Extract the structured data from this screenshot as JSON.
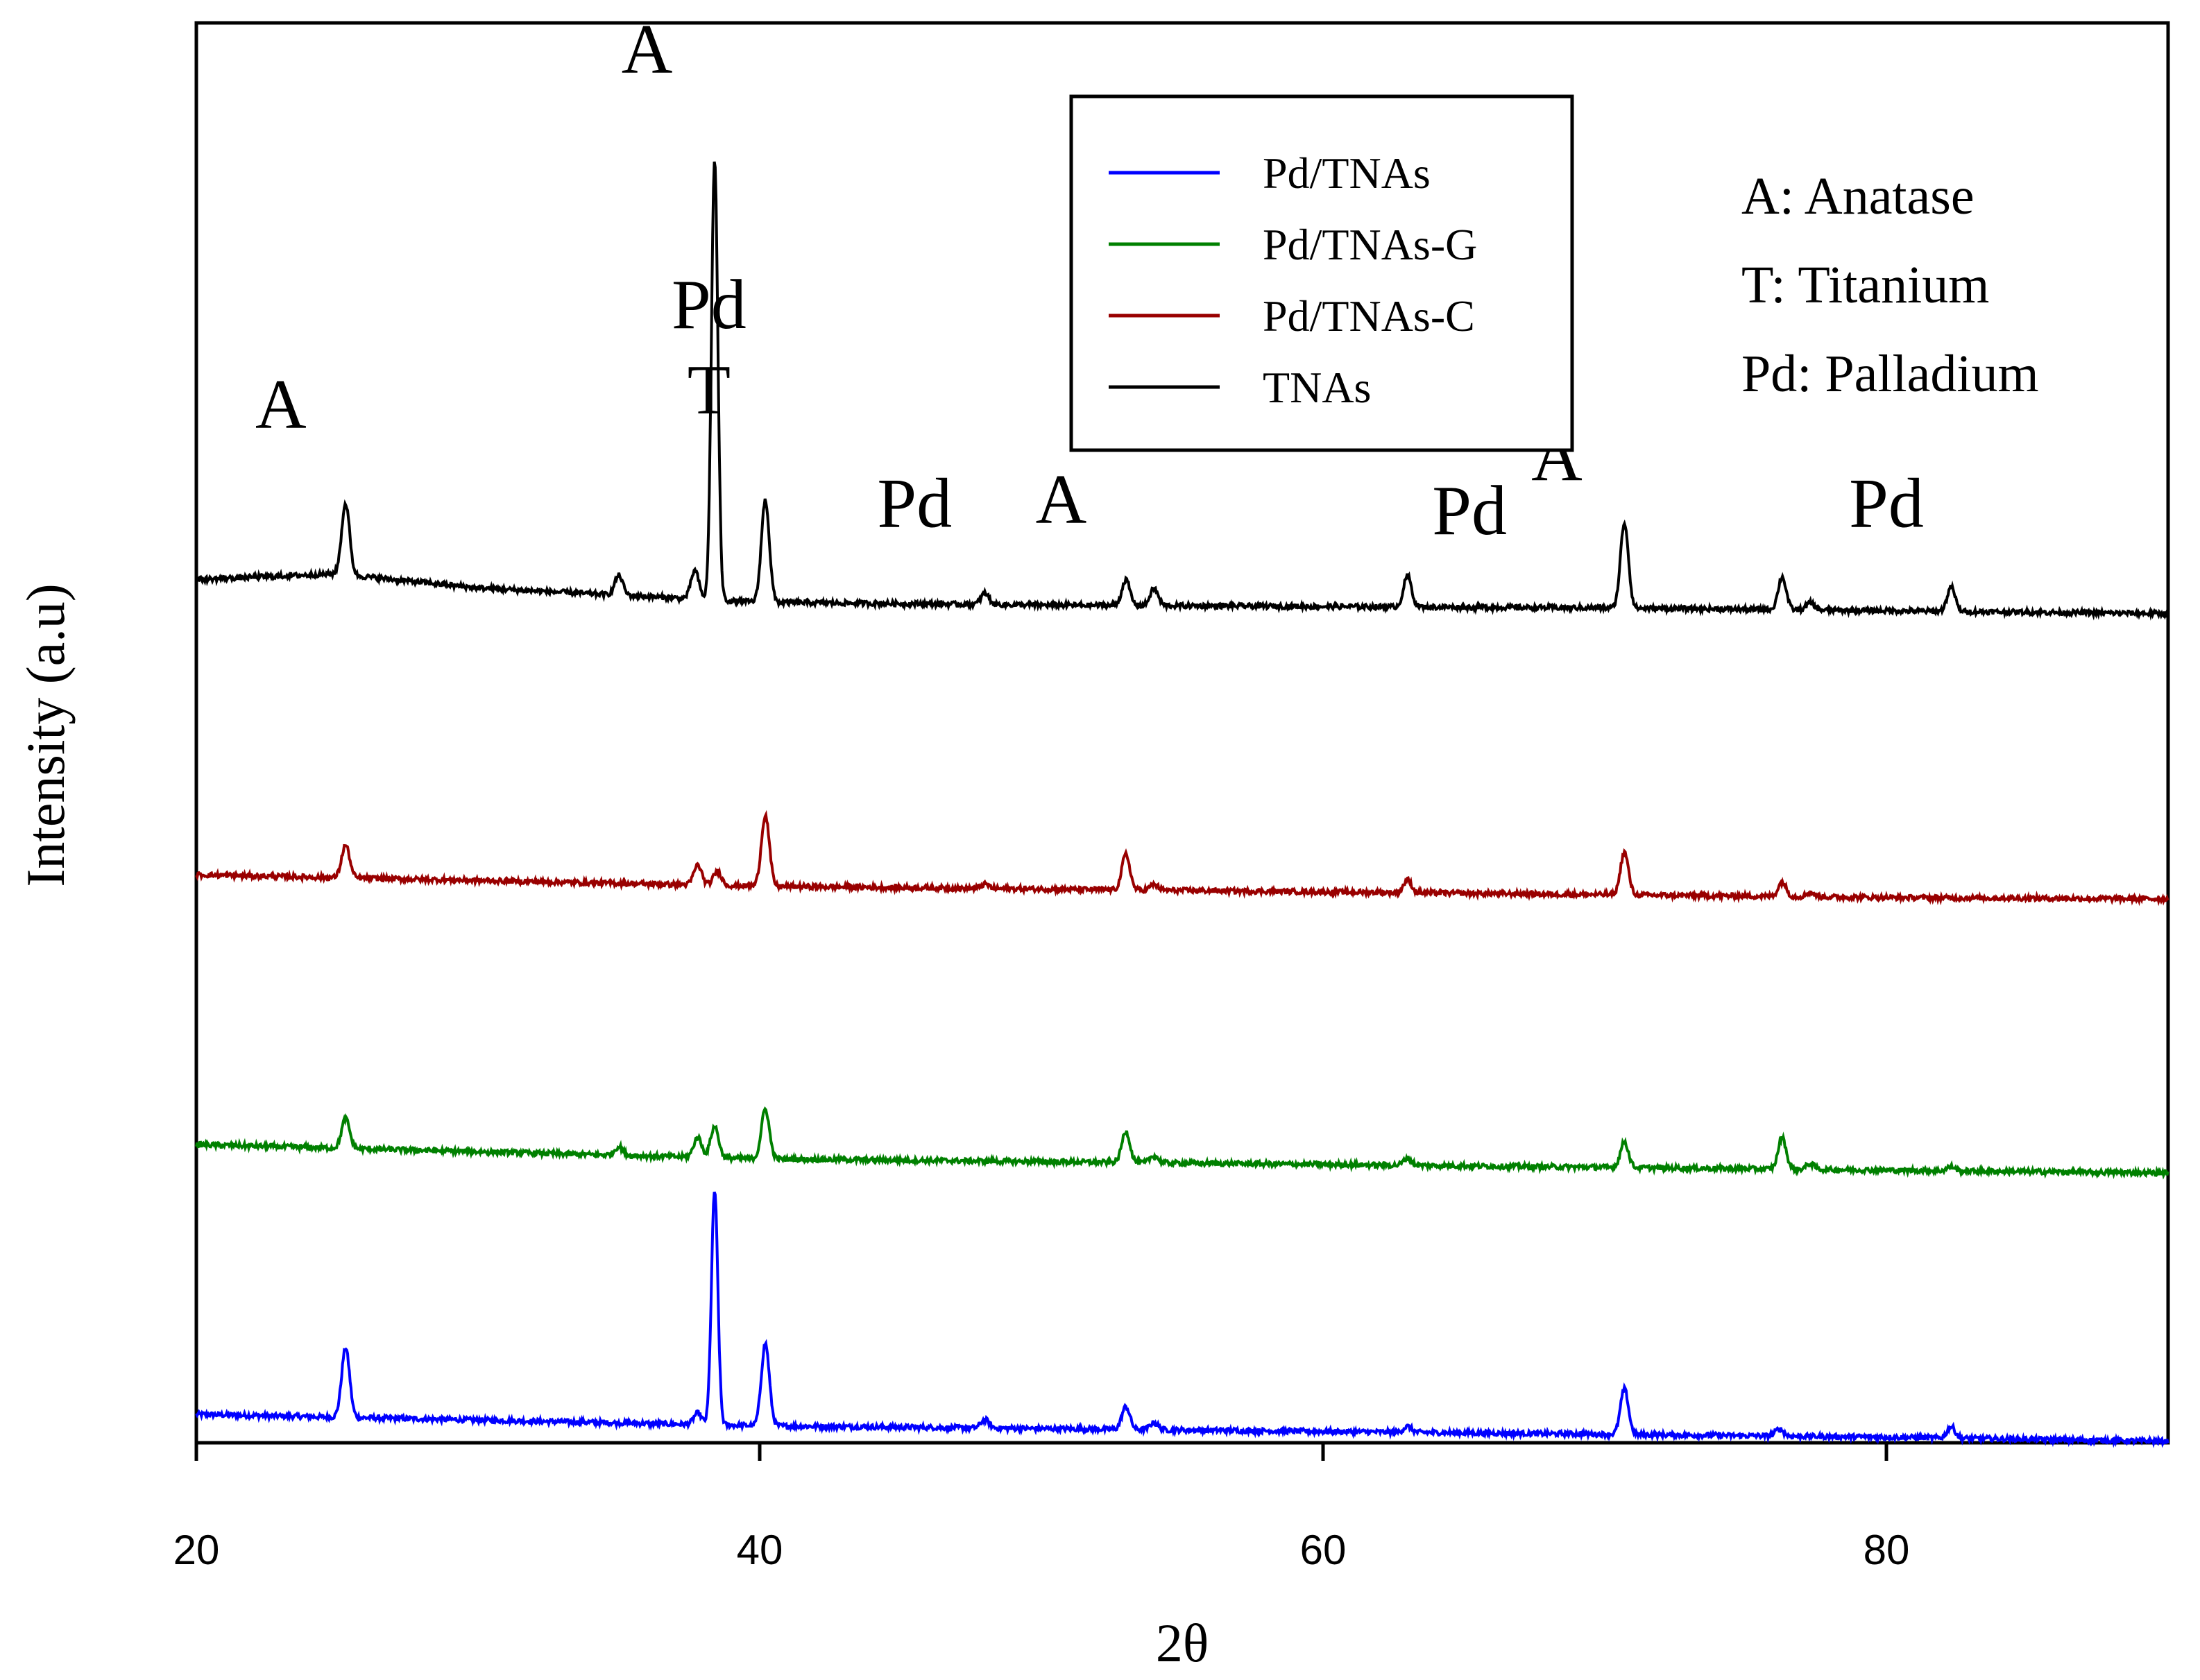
{
  "chart_data": {
    "type": "line",
    "title": "",
    "xlabel": "2θ",
    "ylabel": "Intensity (a.u)",
    "xlim": [
      20,
      90
    ],
    "ylim": [
      0,
      100
    ],
    "xticks": [
      20,
      40,
      60,
      80
    ],
    "grid": false,
    "legend_position": "top-center",
    "series": [
      {
        "name": "Pd/TNAs",
        "color": "#0000ff",
        "baseline": [
          [
            20,
            2.0
          ],
          [
            30,
            1.6
          ],
          [
            40,
            1.2
          ],
          [
            50,
            1.0
          ],
          [
            60,
            0.8
          ],
          [
            70,
            0.6
          ],
          [
            80,
            0.4
          ],
          [
            90,
            0.1
          ]
        ],
        "peaks": [
          {
            "x": 25.3,
            "h": 4.9
          },
          {
            "x": 37.8,
            "h": 0.8
          },
          {
            "x": 38.4,
            "h": 16.5
          },
          {
            "x": 40.2,
            "h": 5.8
          },
          {
            "x": 48.0,
            "h": 0.6
          },
          {
            "x": 53.0,
            "h": 1.6
          },
          {
            "x": 54.0,
            "h": 0.5
          },
          {
            "x": 63.0,
            "h": 0.4
          },
          {
            "x": 70.7,
            "h": 3.2
          },
          {
            "x": 76.2,
            "h": 0.5
          },
          {
            "x": 82.3,
            "h": 0.8
          }
        ]
      },
      {
        "name": "Pd/TNAs-G",
        "color": "#008000",
        "baseline": [
          [
            20,
            21.0
          ],
          [
            30,
            20.5
          ],
          [
            40,
            20.0
          ],
          [
            50,
            19.8
          ],
          [
            60,
            19.6
          ],
          [
            70,
            19.4
          ],
          [
            80,
            19.2
          ],
          [
            90,
            19.0
          ]
        ],
        "peaks": [
          {
            "x": 25.3,
            "h": 2.1
          },
          {
            "x": 35.0,
            "h": 0.6
          },
          {
            "x": 37.8,
            "h": 1.4
          },
          {
            "x": 38.4,
            "h": 2.2
          },
          {
            "x": 40.2,
            "h": 3.5
          },
          {
            "x": 53.0,
            "h": 2.2
          },
          {
            "x": 54.0,
            "h": 0.5
          },
          {
            "x": 63.0,
            "h": 0.5
          },
          {
            "x": 70.7,
            "h": 1.8
          },
          {
            "x": 76.3,
            "h": 2.2
          },
          {
            "x": 77.3,
            "h": 0.4
          },
          {
            "x": 82.3,
            "h": 0.3
          }
        ]
      },
      {
        "name": "Pd/TNAs-C",
        "color": "#990000",
        "baseline": [
          [
            20,
            40.0
          ],
          [
            30,
            39.6
          ],
          [
            40,
            39.2
          ],
          [
            50,
            39.0
          ],
          [
            60,
            38.8
          ],
          [
            70,
            38.6
          ],
          [
            80,
            38.4
          ],
          [
            90,
            38.3
          ]
        ],
        "peaks": [
          {
            "x": 25.3,
            "h": 2.3
          },
          {
            "x": 37.8,
            "h": 1.4
          },
          {
            "x": 38.5,
            "h": 1.0
          },
          {
            "x": 40.2,
            "h": 5.0
          },
          {
            "x": 48.0,
            "h": 0.3
          },
          {
            "x": 53.0,
            "h": 2.5
          },
          {
            "x": 54.0,
            "h": 0.4
          },
          {
            "x": 63.0,
            "h": 0.9
          },
          {
            "x": 70.7,
            "h": 3.0
          },
          {
            "x": 76.3,
            "h": 1.0
          },
          {
            "x": 77.3,
            "h": 0.3
          }
        ]
      },
      {
        "name": "TNAs",
        "color": "#000000",
        "baseline": [
          [
            20,
            60.8
          ],
          [
            25,
            61.2
          ],
          [
            30,
            60.2
          ],
          [
            40,
            59.2
          ],
          [
            50,
            59.0
          ],
          [
            60,
            58.9
          ],
          [
            70,
            58.8
          ],
          [
            80,
            58.6
          ],
          [
            90,
            58.4
          ]
        ],
        "peaks": [
          {
            "x": 25.3,
            "h": 5.0
          },
          {
            "x": 35.0,
            "h": 1.4
          },
          {
            "x": 37.7,
            "h": 2.0
          },
          {
            "x": 38.4,
            "h": 31.0
          },
          {
            "x": 40.2,
            "h": 7.2
          },
          {
            "x": 48.0,
            "h": 0.8
          },
          {
            "x": 53.0,
            "h": 1.8
          },
          {
            "x": 54.0,
            "h": 1.2
          },
          {
            "x": 63.0,
            "h": 2.2
          },
          {
            "x": 70.7,
            "h": 6.0
          },
          {
            "x": 76.3,
            "h": 2.3
          },
          {
            "x": 77.3,
            "h": 0.5
          },
          {
            "x": 82.3,
            "h": 1.7
          }
        ]
      }
    ],
    "annotations": [
      {
        "text": "A",
        "x": 23.0,
        "y": 71.5
      },
      {
        "text": "A",
        "x": 36.0,
        "y": 96.5
      },
      {
        "text": "Pd",
        "x": 38.2,
        "y": 78.5
      },
      {
        "text": "T",
        "x": 38.2,
        "y": 72.5
      },
      {
        "text": "Pd",
        "x": 45.5,
        "y": 64.5
      },
      {
        "text": "A",
        "x": 50.7,
        "y": 64.8
      },
      {
        "text": "Pd",
        "x": 65.2,
        "y": 64.0
      },
      {
        "text": "A",
        "x": 68.3,
        "y": 67.8
      },
      {
        "text": "Pd",
        "x": 80.0,
        "y": 64.5
      }
    ],
    "phase_key": [
      "A: Anatase",
      "T: Titanium",
      "Pd: Palladium"
    ]
  }
}
